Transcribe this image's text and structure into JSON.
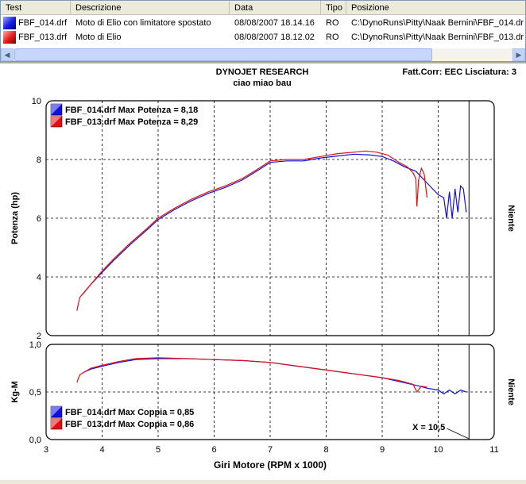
{
  "table": {
    "columns": [
      "Test",
      "Descrizione",
      "Data",
      "Tipo",
      "Posizione"
    ],
    "rows": [
      {
        "test": "FBF_014.drf",
        "descrizione": "Moto di Elio con limitatore spostato",
        "data": "08/08/2007 18.14.16",
        "tipo": "RO",
        "posizione": "C:\\DynoRuns\\Pitty\\Naak Bernini\\FBF_014.dr",
        "color": "#1010e0"
      },
      {
        "test": "FBF_013.drf",
        "descrizione": "Moto di Elio",
        "data": "08/08/2007 18.12.02",
        "tipo": "RO",
        "posizione": "C:\\DynoRuns\\Pitty\\Naak Bernini\\FBF_013.dr",
        "color": "#e01010"
      }
    ],
    "scroll_left_icon": "arrow-left-icon",
    "scroll_right_icon": "arrow-right-icon"
  },
  "header": {
    "title": "DYNOJET RESEARCH",
    "subtitle": "ciao miao bau",
    "right": "Fatt.Corr: EEC  Lisciatura: 3"
  },
  "chart_data": [
    {
      "type": "line",
      "ylabel": "Potenza (hp)",
      "right_label": "Niente",
      "xlim": [
        3,
        11
      ],
      "ylim": [
        2,
        10
      ],
      "yticks": [
        "2",
        "4",
        "6",
        "8",
        "10"
      ],
      "legend": [
        {
          "text": "FBF_014.drf Max Potenza = 8,18",
          "color": "#1010e0"
        },
        {
          "text": "FBF_013.drf Max Potenza = 8,29",
          "color": "#e01010"
        }
      ],
      "series": [
        {
          "name": "FBF_014.drf",
          "color": "#1010e0",
          "x": [
            3.65,
            3.8,
            4.0,
            4.2,
            4.5,
            4.8,
            5.0,
            5.3,
            5.6,
            5.9,
            6.2,
            6.5,
            6.8,
            7.0,
            7.3,
            7.6,
            7.9,
            8.2,
            8.5,
            8.8,
            9.0,
            9.2,
            9.4,
            9.6,
            9.75,
            9.8,
            9.9,
            10.0,
            10.1,
            10.15,
            10.2,
            10.25,
            10.3,
            10.35,
            10.4,
            10.45,
            10.5
          ],
          "y": [
            3.4,
            3.75,
            4.15,
            4.55,
            5.1,
            5.6,
            5.95,
            6.3,
            6.6,
            6.85,
            7.05,
            7.3,
            7.65,
            7.9,
            7.95,
            7.95,
            8.05,
            8.12,
            8.18,
            8.15,
            8.1,
            7.95,
            7.75,
            7.6,
            7.3,
            7.2,
            7.0,
            6.8,
            6.7,
            6.0,
            6.9,
            6.0,
            7.0,
            6.2,
            7.1,
            7.0,
            6.2
          ]
        },
        {
          "name": "FBF_013.drf",
          "color": "#e01010",
          "x": [
            3.55,
            3.6,
            3.8,
            4.0,
            4.2,
            4.5,
            4.8,
            5.0,
            5.3,
            5.6,
            5.9,
            6.2,
            6.5,
            6.8,
            7.0,
            7.3,
            7.6,
            7.9,
            8.2,
            8.5,
            8.7,
            8.9,
            9.1,
            9.3,
            9.45,
            9.55,
            9.6,
            9.62,
            9.65,
            9.7,
            9.75,
            9.8
          ],
          "y": [
            2.85,
            3.3,
            3.75,
            4.2,
            4.6,
            5.15,
            5.65,
            6.0,
            6.35,
            6.65,
            6.9,
            7.1,
            7.35,
            7.7,
            7.95,
            8.0,
            8.0,
            8.1,
            8.2,
            8.25,
            8.29,
            8.25,
            8.15,
            7.9,
            7.75,
            7.55,
            7.35,
            6.4,
            7.3,
            7.7,
            7.5,
            6.7
          ]
        }
      ]
    },
    {
      "type": "line",
      "ylabel": "Kg-M",
      "right_label": "Niente",
      "xlabel": "Giri Motore (RPM x 1000)",
      "xlim": [
        3,
        11
      ],
      "ylim": [
        0,
        1
      ],
      "xticks": [
        "3",
        "4",
        "5",
        "6",
        "7",
        "8",
        "9",
        "10",
        "11"
      ],
      "yticks": [
        "0,0",
        "0,5",
        "1,0"
      ],
      "cursor_label": "X = 10,5",
      "legend": [
        {
          "text": "FBF_014.drf Max Coppia = 0,85",
          "color": "#1010e0"
        },
        {
          "text": "FBF_013.drf Max Coppia = 0,86",
          "color": "#e01010"
        }
      ],
      "series": [
        {
          "name": "FBF_014.drf",
          "color": "#1010e0",
          "x": [
            3.65,
            3.8,
            4.0,
            4.3,
            4.6,
            5.0,
            5.5,
            6.0,
            6.5,
            7.0,
            7.5,
            8.0,
            8.5,
            9.0,
            9.3,
            9.6,
            9.8,
            10.0,
            10.1,
            10.2,
            10.3,
            10.4,
            10.5
          ],
          "y": [
            0.7,
            0.74,
            0.77,
            0.81,
            0.84,
            0.85,
            0.85,
            0.84,
            0.83,
            0.81,
            0.77,
            0.73,
            0.69,
            0.65,
            0.61,
            0.57,
            0.54,
            0.52,
            0.48,
            0.52,
            0.48,
            0.52,
            0.5
          ]
        },
        {
          "name": "FBF_013.drf",
          "color": "#e01010",
          "x": [
            3.55,
            3.6,
            3.8,
            4.0,
            4.3,
            4.6,
            5.0,
            5.5,
            6.0,
            6.5,
            7.0,
            7.5,
            8.0,
            8.5,
            9.0,
            9.3,
            9.55,
            9.62,
            9.7,
            9.8
          ],
          "y": [
            0.6,
            0.68,
            0.75,
            0.78,
            0.82,
            0.85,
            0.86,
            0.85,
            0.84,
            0.83,
            0.81,
            0.77,
            0.73,
            0.69,
            0.65,
            0.62,
            0.58,
            0.5,
            0.56,
            0.55
          ]
        }
      ]
    }
  ]
}
